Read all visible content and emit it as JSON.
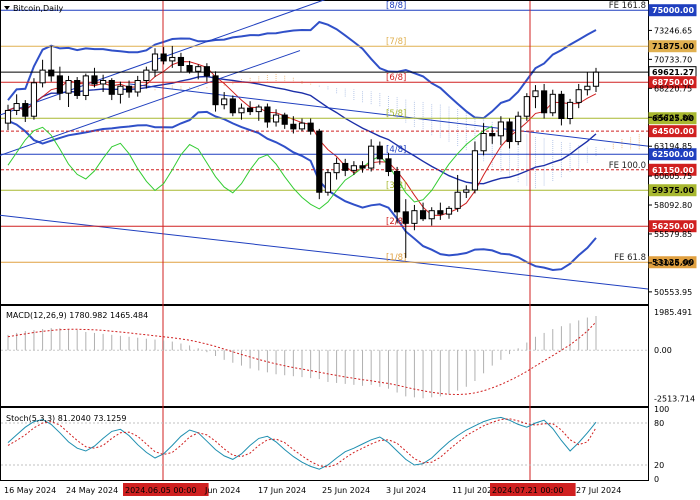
{
  "chart_data": {
    "type": "candlestick",
    "title": "Bitcoin,Daily",
    "price_axis": {
      "range": [
        49500,
        75800
      ],
      "ticks": [
        "73246.65",
        "70733.70",
        "68220.75",
        "65707.80",
        "63194.85",
        "60605.75",
        "58092.80",
        "55579.85",
        "53066.90",
        "50553.95"
      ],
      "tick_values": [
        73246.65,
        70733.7,
        68220.75,
        65707.8,
        63194.85,
        60605.75,
        58092.8,
        55579.85,
        53066.9,
        50553.95
      ]
    },
    "levels": [
      {
        "value": 75000,
        "label": "75000.00",
        "tag": "FE 161.8",
        "color": "#1f3fbf"
      },
      {
        "value": 71875,
        "label": "71875.00",
        "tag": "[7/8]",
        "color": "#e0b050"
      },
      {
        "value": 69621.27,
        "label": "69621.27",
        "tag": "",
        "color": "#000000"
      },
      {
        "value": 68750,
        "label": "68750.00",
        "tag": "[6/8]",
        "color": "#d02020"
      },
      {
        "value": 65625,
        "label": "65625.00",
        "tag": "[5/8]",
        "color": "#a8b830"
      },
      {
        "value": 64500,
        "label": "64500.00",
        "tag": "",
        "color": "#d02020"
      },
      {
        "value": 62500,
        "label": "62500.00",
        "tag": "[4/8]",
        "color": "#1f3fbf"
      },
      {
        "value": 61150,
        "label": "61150.00",
        "tag": "FE 100.0",
        "color": "#d02020"
      },
      {
        "value": 59375,
        "label": "59375.00",
        "tag": "[3/8]",
        "color": "#a8b830"
      },
      {
        "value": 56250,
        "label": "56250.00",
        "tag": "[2/8]",
        "color": "#d02020"
      },
      {
        "value": 53125,
        "label": "53125.00",
        "tag": "FE 61.8",
        "color": "#e0a040"
      },
      {
        "value": 75000,
        "label": "",
        "tag": "[8/8]",
        "color": "#1f3fbf"
      },
      {
        "value": 53125,
        "label": "",
        "tag": "[1/8]",
        "color": "#e0a040"
      }
    ],
    "candles": [
      {
        "o": 65200,
        "h": 66800,
        "l": 64600,
        "c": 66300
      },
      {
        "o": 66300,
        "h": 67700,
        "l": 65900,
        "c": 66900
      },
      {
        "o": 66900,
        "h": 67200,
        "l": 65300,
        "c": 65800
      },
      {
        "o": 65800,
        "h": 69100,
        "l": 65500,
        "c": 68700
      },
      {
        "o": 68700,
        "h": 70700,
        "l": 68300,
        "c": 69800
      },
      {
        "o": 69800,
        "h": 71900,
        "l": 68800,
        "c": 69300
      },
      {
        "o": 69300,
        "h": 70100,
        "l": 67200,
        "c": 67800
      },
      {
        "o": 67800,
        "h": 69300,
        "l": 66600,
        "c": 68900
      },
      {
        "o": 68900,
        "h": 69200,
        "l": 67300,
        "c": 67600
      },
      {
        "o": 67600,
        "h": 69500,
        "l": 67200,
        "c": 69300
      },
      {
        "o": 69300,
        "h": 70000,
        "l": 68300,
        "c": 68600
      },
      {
        "o": 68600,
        "h": 69400,
        "l": 67900,
        "c": 68900
      },
      {
        "o": 68900,
        "h": 69100,
        "l": 67200,
        "c": 67700
      },
      {
        "o": 67700,
        "h": 68800,
        "l": 66900,
        "c": 68400
      },
      {
        "o": 68400,
        "h": 68900,
        "l": 67400,
        "c": 67900
      },
      {
        "o": 67900,
        "h": 69300,
        "l": 67500,
        "c": 68900
      },
      {
        "o": 68900,
        "h": 70100,
        "l": 68200,
        "c": 69800
      },
      {
        "o": 69800,
        "h": 71700,
        "l": 69200,
        "c": 71200
      },
      {
        "o": 71200,
        "h": 71800,
        "l": 70300,
        "c": 70600
      },
      {
        "o": 70600,
        "h": 71900,
        "l": 70000,
        "c": 70900
      },
      {
        "o": 70900,
        "h": 71300,
        "l": 69600,
        "c": 70200
      },
      {
        "o": 70200,
        "h": 70600,
        "l": 69500,
        "c": 69700
      },
      {
        "o": 69700,
        "h": 70300,
        "l": 69000,
        "c": 70100
      },
      {
        "o": 70100,
        "h": 70400,
        "l": 68800,
        "c": 69300
      },
      {
        "o": 69300,
        "h": 69700,
        "l": 66200,
        "c": 66800
      },
      {
        "o": 66800,
        "h": 67900,
        "l": 66400,
        "c": 67300
      },
      {
        "o": 67300,
        "h": 67600,
        "l": 65800,
        "c": 66100
      },
      {
        "o": 66100,
        "h": 66900,
        "l": 65500,
        "c": 66500
      },
      {
        "o": 66500,
        "h": 67100,
        "l": 65900,
        "c": 66200
      },
      {
        "o": 66200,
        "h": 66800,
        "l": 65400,
        "c": 66600
      },
      {
        "o": 66600,
        "h": 66900,
        "l": 64800,
        "c": 65300
      },
      {
        "o": 65300,
        "h": 66400,
        "l": 64900,
        "c": 65900
      },
      {
        "o": 65900,
        "h": 66100,
        "l": 64700,
        "c": 65100
      },
      {
        "o": 65100,
        "h": 65800,
        "l": 64300,
        "c": 64700
      },
      {
        "o": 64700,
        "h": 65600,
        "l": 64500,
        "c": 65200
      },
      {
        "o": 65200,
        "h": 65600,
        "l": 64200,
        "c": 64500
      },
      {
        "o": 64500,
        "h": 64700,
        "l": 58600,
        "c": 59200
      },
      {
        "o": 59200,
        "h": 61200,
        "l": 58900,
        "c": 60900
      },
      {
        "o": 60900,
        "h": 62200,
        "l": 60300,
        "c": 61700
      },
      {
        "o": 61700,
        "h": 62100,
        "l": 60600,
        "c": 61100
      },
      {
        "o": 61100,
        "h": 61900,
        "l": 60700,
        "c": 61500
      },
      {
        "o": 61500,
        "h": 61900,
        "l": 60900,
        "c": 61300
      },
      {
        "o": 61300,
        "h": 63800,
        "l": 61000,
        "c": 63200
      },
      {
        "o": 63200,
        "h": 63600,
        "l": 61600,
        "c": 62100
      },
      {
        "o": 62100,
        "h": 62600,
        "l": 60600,
        "c": 61000
      },
      {
        "o": 61000,
        "h": 61400,
        "l": 56500,
        "c": 57500
      },
      {
        "o": 57500,
        "h": 58600,
        "l": 53500,
        "c": 56500
      },
      {
        "o": 56500,
        "h": 58100,
        "l": 55900,
        "c": 57600
      },
      {
        "o": 57600,
        "h": 58300,
        "l": 56700,
        "c": 56900
      },
      {
        "o": 56900,
        "h": 57900,
        "l": 56300,
        "c": 57600
      },
      {
        "o": 57600,
        "h": 58300,
        "l": 56800,
        "c": 57300
      },
      {
        "o": 57300,
        "h": 58000,
        "l": 56900,
        "c": 57800
      },
      {
        "o": 57800,
        "h": 60700,
        "l": 57500,
        "c": 59200
      },
      {
        "o": 59200,
        "h": 59800,
        "l": 58700,
        "c": 59400
      },
      {
        "o": 59400,
        "h": 63600,
        "l": 59100,
        "c": 62800
      },
      {
        "o": 62800,
        "h": 65200,
        "l": 62400,
        "c": 64300
      },
      {
        "o": 64300,
        "h": 64800,
        "l": 63400,
        "c": 64100
      },
      {
        "o": 64100,
        "h": 65800,
        "l": 63300,
        "c": 65300
      },
      {
        "o": 65300,
        "h": 65600,
        "l": 63000,
        "c": 63600
      },
      {
        "o": 63600,
        "h": 66200,
        "l": 63300,
        "c": 65800
      },
      {
        "o": 65800,
        "h": 67800,
        "l": 65400,
        "c": 67500
      },
      {
        "o": 67500,
        "h": 68500,
        "l": 66500,
        "c": 68000
      },
      {
        "o": 68000,
        "h": 68600,
        "l": 65600,
        "c": 66100
      },
      {
        "o": 66100,
        "h": 68100,
        "l": 65800,
        "c": 67700
      },
      {
        "o": 67700,
        "h": 68000,
        "l": 65000,
        "c": 65600
      },
      {
        "o": 65600,
        "h": 67300,
        "l": 65100,
        "c": 67000
      },
      {
        "o": 67000,
        "h": 68600,
        "l": 66500,
        "c": 68100
      },
      {
        "o": 68100,
        "h": 69600,
        "l": 67600,
        "c": 68400
      },
      {
        "o": 68400,
        "h": 70000,
        "l": 67900,
        "c": 69621.27
      }
    ],
    "x_labels": [
      "16 May 2024",
      "24 May 2024",
      "2024.06.05 00:00",
      "Jun 2024",
      "17 Jun 2024",
      "25 Jun 2024",
      "3 Jul 2024",
      "11 Jul 202",
      "2024.07.21 00:00",
      "27 Jul 2024"
    ],
    "markers": [
      "2024.06.05 00:00",
      "2024.07.21 00:00"
    ],
    "macd": {
      "label": "MACD(12,26,9) 1780.982 1465.484",
      "ticks": [
        "1985.491",
        "0.00",
        "-2513.714"
      ],
      "range": [
        -2900,
        2300
      ],
      "hist": [
        800,
        900,
        1000,
        1050,
        1100,
        1150,
        1150,
        1100,
        1050,
        950,
        900,
        850,
        800,
        750,
        700,
        650,
        600,
        550,
        500,
        450,
        350,
        250,
        100,
        -100,
        -300,
        -500,
        -650,
        -800,
        -950,
        -1050,
        -1150,
        -1250,
        -1300,
        -1350,
        -1400,
        -1450,
        -1500,
        -1650,
        -1700,
        -1750,
        -1800,
        -1850,
        -1800,
        -1900,
        -2000,
        -2200,
        -2400,
        -2450,
        -2500,
        -2450,
        -2400,
        -2300,
        -2100,
        -1900,
        -1600,
        -1200,
        -800,
        -500,
        -200,
        100,
        400,
        700,
        900,
        1100,
        1250,
        1400,
        1550,
        1700,
        1780.982
      ],
      "signal": [
        700,
        780,
        850,
        920,
        980,
        1030,
        1070,
        1090,
        1090,
        1080,
        1060,
        1030,
        990,
        950,
        900,
        850,
        800,
        750,
        700,
        650,
        590,
        520,
        430,
        320,
        200,
        60,
        -80,
        -220,
        -350,
        -480,
        -600,
        -710,
        -810,
        -900,
        -980,
        -1060,
        -1140,
        -1230,
        -1310,
        -1390,
        -1460,
        -1530,
        -1590,
        -1660,
        -1730,
        -1820,
        -1920,
        -2020,
        -2110,
        -2190,
        -2250,
        -2290,
        -2300,
        -2280,
        -2220,
        -2110,
        -1960,
        -1780,
        -1580,
        -1350,
        -1100,
        -820,
        -550,
        -280,
        0,
        280,
        620,
        1000,
        1465.484
      ]
    },
    "stoch": {
      "label": "Stoch(5,3,3) 81.2040 73.1259",
      "ticks": [
        "100",
        "80",
        "20",
        "0"
      ],
      "range": [
        0,
        100
      ],
      "k": [
        52,
        63,
        74,
        82,
        85,
        78,
        66,
        53,
        44,
        40,
        47,
        58,
        68,
        71,
        62,
        49,
        38,
        30,
        36,
        48,
        61,
        70,
        66,
        54,
        42,
        33,
        28,
        36,
        48,
        58,
        61,
        53,
        42,
        32,
        24,
        18,
        14,
        20,
        30,
        39,
        44,
        50,
        56,
        60,
        52,
        40,
        28,
        20,
        22,
        30,
        42,
        53,
        62,
        70,
        76,
        82,
        86,
        88,
        84,
        78,
        74,
        80,
        84,
        72,
        55,
        40,
        52,
        66,
        81.204
      ],
      "d": [
        48,
        55,
        63,
        73,
        80,
        82,
        77,
        66,
        55,
        46,
        44,
        48,
        58,
        66,
        67,
        61,
        50,
        39,
        35,
        38,
        48,
        60,
        66,
        63,
        54,
        43,
        34,
        32,
        37,
        48,
        56,
        57,
        52,
        42,
        33,
        25,
        19,
        17,
        21,
        30,
        38,
        44,
        50,
        55,
        56,
        51,
        40,
        29,
        23,
        24,
        31,
        42,
        52,
        62,
        69,
        76,
        81,
        85,
        86,
        83,
        79,
        77,
        79,
        79,
        70,
        56,
        49,
        53,
        73.1259
      ]
    }
  }
}
